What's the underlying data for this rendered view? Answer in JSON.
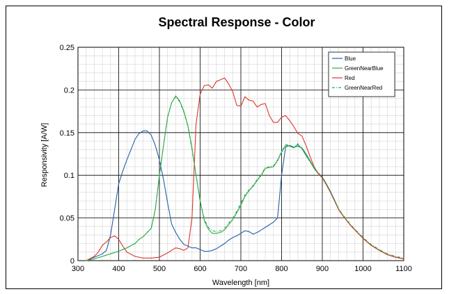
{
  "chart_data": {
    "type": "line",
    "title": "Spectral Response - Color",
    "xlabel": "Wavelength [nm]",
    "ylabel": "Responsivity [A/W]",
    "xlim": [
      300,
      1100
    ],
    "ylim": [
      0,
      0.25
    ],
    "x_ticks": [
      300,
      400,
      500,
      600,
      700,
      800,
      900,
      1000,
      1100
    ],
    "x_tick_labels": [
      "300",
      "400",
      "500",
      "600",
      "700",
      "800",
      "900",
      "1000",
      "1100"
    ],
    "y_ticks": [
      0,
      0.05,
      0.1,
      0.15,
      0.2,
      0.25
    ],
    "y_tick_labels": [
      "0",
      "0.05",
      "0.1",
      "0.15",
      "0.2",
      "0.25"
    ],
    "grid": true,
    "legend_position": "top-right",
    "series": [
      {
        "name": "Blue",
        "color": "#1f5fa8",
        "dash": "solid",
        "points": [
          [
            320,
            0
          ],
          [
            340,
            0.004
          ],
          [
            360,
            0.008
          ],
          [
            370,
            0.012
          ],
          [
            380,
            0.03
          ],
          [
            390,
            0.06
          ],
          [
            400,
            0.09
          ],
          [
            410,
            0.105
          ],
          [
            420,
            0.118
          ],
          [
            430,
            0.13
          ],
          [
            440,
            0.142
          ],
          [
            450,
            0.149
          ],
          [
            460,
            0.152
          ],
          [
            470,
            0.152
          ],
          [
            480,
            0.147
          ],
          [
            490,
            0.135
          ],
          [
            500,
            0.118
          ],
          [
            510,
            0.095
          ],
          [
            520,
            0.068
          ],
          [
            530,
            0.043
          ],
          [
            540,
            0.033
          ],
          [
            550,
            0.025
          ],
          [
            560,
            0.019
          ],
          [
            570,
            0.017
          ],
          [
            580,
            0.015
          ],
          [
            590,
            0.015
          ],
          [
            600,
            0.013
          ],
          [
            610,
            0.011
          ],
          [
            620,
            0.011
          ],
          [
            630,
            0.012
          ],
          [
            640,
            0.014
          ],
          [
            650,
            0.017
          ],
          [
            660,
            0.02
          ],
          [
            670,
            0.024
          ],
          [
            680,
            0.027
          ],
          [
            690,
            0.029
          ],
          [
            700,
            0.032
          ],
          [
            710,
            0.035
          ],
          [
            720,
            0.034
          ],
          [
            730,
            0.031
          ],
          [
            740,
            0.033
          ],
          [
            750,
            0.036
          ],
          [
            760,
            0.039
          ],
          [
            770,
            0.042
          ],
          [
            780,
            0.045
          ],
          [
            790,
            0.05
          ],
          [
            800,
            0.1
          ],
          [
            810,
            0.133
          ],
          [
            820,
            0.135
          ],
          [
            830,
            0.133
          ],
          [
            840,
            0.134
          ],
          [
            850,
            0.132
          ],
          [
            860,
            0.125
          ],
          [
            870,
            0.117
          ],
          [
            880,
            0.108
          ],
          [
            890,
            0.102
          ],
          [
            900,
            0.098
          ],
          [
            910,
            0.09
          ],
          [
            920,
            0.081
          ],
          [
            930,
            0.071
          ],
          [
            940,
            0.06
          ],
          [
            950,
            0.053
          ],
          [
            960,
            0.047
          ],
          [
            970,
            0.041
          ],
          [
            980,
            0.036
          ],
          [
            990,
            0.031
          ],
          [
            1000,
            0.026
          ],
          [
            1020,
            0.018
          ],
          [
            1040,
            0.012
          ],
          [
            1060,
            0.007
          ],
          [
            1080,
            0.004
          ],
          [
            1100,
            0.002
          ]
        ]
      },
      {
        "name": "GreenNearBlue",
        "color": "#2eaa4a",
        "dash": "solid",
        "points": [
          [
            320,
            0
          ],
          [
            340,
            0.002
          ],
          [
            360,
            0.005
          ],
          [
            380,
            0.008
          ],
          [
            400,
            0.011
          ],
          [
            420,
            0.015
          ],
          [
            440,
            0.02
          ],
          [
            450,
            0.025
          ],
          [
            460,
            0.028
          ],
          [
            470,
            0.033
          ],
          [
            480,
            0.038
          ],
          [
            490,
            0.06
          ],
          [
            500,
            0.1
          ],
          [
            510,
            0.135
          ],
          [
            520,
            0.168
          ],
          [
            530,
            0.185
          ],
          [
            540,
            0.193
          ],
          [
            550,
            0.187
          ],
          [
            560,
            0.175
          ],
          [
            570,
            0.158
          ],
          [
            580,
            0.132
          ],
          [
            590,
            0.1
          ],
          [
            600,
            0.07
          ],
          [
            610,
            0.047
          ],
          [
            620,
            0.037
          ],
          [
            630,
            0.032
          ],
          [
            640,
            0.032
          ],
          [
            650,
            0.033
          ],
          [
            660,
            0.036
          ],
          [
            670,
            0.042
          ],
          [
            680,
            0.048
          ],
          [
            690,
            0.056
          ],
          [
            700,
            0.065
          ],
          [
            710,
            0.075
          ],
          [
            720,
            0.082
          ],
          [
            730,
            0.087
          ],
          [
            740,
            0.094
          ],
          [
            750,
            0.1
          ],
          [
            760,
            0.108
          ],
          [
            770,
            0.109
          ],
          [
            780,
            0.11
          ],
          [
            790,
            0.117
          ],
          [
            800,
            0.127
          ],
          [
            810,
            0.135
          ],
          [
            820,
            0.134
          ],
          [
            830,
            0.132
          ],
          [
            840,
            0.136
          ],
          [
            850,
            0.131
          ],
          [
            860,
            0.123
          ],
          [
            870,
            0.116
          ],
          [
            880,
            0.108
          ],
          [
            890,
            0.102
          ],
          [
            900,
            0.097
          ],
          [
            910,
            0.089
          ],
          [
            920,
            0.08
          ],
          [
            930,
            0.07
          ],
          [
            940,
            0.06
          ],
          [
            950,
            0.053
          ],
          [
            960,
            0.047
          ],
          [
            970,
            0.041
          ],
          [
            980,
            0.036
          ],
          [
            990,
            0.031
          ],
          [
            1000,
            0.026
          ],
          [
            1020,
            0.018
          ],
          [
            1040,
            0.012
          ],
          [
            1060,
            0.007
          ],
          [
            1080,
            0.004
          ],
          [
            1100,
            0.002
          ]
        ]
      },
      {
        "name": "Red",
        "color": "#d9352b",
        "dash": "solid",
        "points": [
          [
            320,
            0
          ],
          [
            340,
            0.005
          ],
          [
            350,
            0.01
          ],
          [
            360,
            0.018
          ],
          [
            370,
            0.022
          ],
          [
            380,
            0.027
          ],
          [
            390,
            0.029
          ],
          [
            400,
            0.025
          ],
          [
            410,
            0.017
          ],
          [
            420,
            0.01
          ],
          [
            440,
            0.005
          ],
          [
            460,
            0.003
          ],
          [
            480,
            0.003
          ],
          [
            500,
            0.004
          ],
          [
            520,
            0.009
          ],
          [
            530,
            0.012
          ],
          [
            540,
            0.015
          ],
          [
            550,
            0.014
          ],
          [
            560,
            0.012
          ],
          [
            570,
            0.015
          ],
          [
            580,
            0.05
          ],
          [
            590,
            0.16
          ],
          [
            600,
            0.195
          ],
          [
            610,
            0.205
          ],
          [
            620,
            0.206
          ],
          [
            630,
            0.202
          ],
          [
            640,
            0.21
          ],
          [
            650,
            0.212
          ],
          [
            660,
            0.214
          ],
          [
            670,
            0.207
          ],
          [
            680,
            0.198
          ],
          [
            690,
            0.182
          ],
          [
            700,
            0.181
          ],
          [
            710,
            0.192
          ],
          [
            720,
            0.188
          ],
          [
            730,
            0.187
          ],
          [
            740,
            0.18
          ],
          [
            750,
            0.183
          ],
          [
            760,
            0.184
          ],
          [
            770,
            0.17
          ],
          [
            780,
            0.162
          ],
          [
            790,
            0.162
          ],
          [
            800,
            0.168
          ],
          [
            810,
            0.17
          ],
          [
            820,
            0.164
          ],
          [
            830,
            0.157
          ],
          [
            840,
            0.149
          ],
          [
            850,
            0.146
          ],
          [
            860,
            0.135
          ],
          [
            870,
            0.122
          ],
          [
            880,
            0.11
          ],
          [
            890,
            0.102
          ],
          [
            900,
            0.097
          ],
          [
            910,
            0.089
          ],
          [
            920,
            0.08
          ],
          [
            930,
            0.07
          ],
          [
            940,
            0.06
          ],
          [
            950,
            0.053
          ],
          [
            960,
            0.047
          ],
          [
            970,
            0.041
          ],
          [
            980,
            0.036
          ],
          [
            990,
            0.031
          ],
          [
            1000,
            0.026
          ],
          [
            1020,
            0.018
          ],
          [
            1040,
            0.012
          ],
          [
            1060,
            0.007
          ],
          [
            1080,
            0.004
          ],
          [
            1100,
            0.002
          ]
        ]
      },
      {
        "name": "GreenNearRed",
        "color": "#2eaa4a",
        "dash": "dashdot",
        "points": [
          [
            320,
            0
          ],
          [
            340,
            0.002
          ],
          [
            360,
            0.005
          ],
          [
            380,
            0.008
          ],
          [
            400,
            0.011
          ],
          [
            420,
            0.015
          ],
          [
            440,
            0.02
          ],
          [
            450,
            0.025
          ],
          [
            460,
            0.028
          ],
          [
            470,
            0.033
          ],
          [
            480,
            0.038
          ],
          [
            490,
            0.06
          ],
          [
            500,
            0.1
          ],
          [
            510,
            0.135
          ],
          [
            520,
            0.168
          ],
          [
            530,
            0.185
          ],
          [
            540,
            0.192
          ],
          [
            550,
            0.186
          ],
          [
            560,
            0.174
          ],
          [
            570,
            0.157
          ],
          [
            580,
            0.13
          ],
          [
            590,
            0.1
          ],
          [
            600,
            0.07
          ],
          [
            610,
            0.049
          ],
          [
            620,
            0.039
          ],
          [
            630,
            0.035
          ],
          [
            640,
            0.034
          ],
          [
            650,
            0.035
          ],
          [
            660,
            0.038
          ],
          [
            670,
            0.044
          ],
          [
            680,
            0.05
          ],
          [
            690,
            0.058
          ],
          [
            700,
            0.067
          ],
          [
            710,
            0.077
          ],
          [
            720,
            0.083
          ],
          [
            730,
            0.088
          ],
          [
            740,
            0.095
          ],
          [
            750,
            0.101
          ],
          [
            760,
            0.109
          ],
          [
            770,
            0.11
          ],
          [
            780,
            0.111
          ],
          [
            790,
            0.118
          ],
          [
            800,
            0.128
          ],
          [
            810,
            0.136
          ],
          [
            820,
            0.135
          ],
          [
            830,
            0.133
          ],
          [
            840,
            0.137
          ],
          [
            850,
            0.132
          ],
          [
            860,
            0.124
          ],
          [
            870,
            0.117
          ],
          [
            880,
            0.109
          ],
          [
            890,
            0.103
          ],
          [
            900,
            0.098
          ],
          [
            910,
            0.09
          ],
          [
            920,
            0.081
          ],
          [
            930,
            0.071
          ],
          [
            940,
            0.061
          ],
          [
            950,
            0.054
          ],
          [
            960,
            0.048
          ],
          [
            970,
            0.042
          ],
          [
            980,
            0.037
          ],
          [
            990,
            0.032
          ],
          [
            1000,
            0.027
          ],
          [
            1020,
            0.019
          ],
          [
            1040,
            0.013
          ],
          [
            1060,
            0.008
          ],
          [
            1080,
            0.005
          ],
          [
            1100,
            0.003
          ]
        ]
      }
    ]
  }
}
